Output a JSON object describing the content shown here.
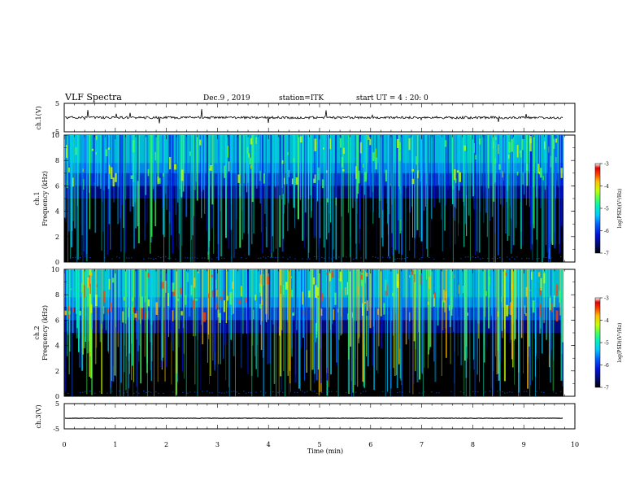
{
  "header": {
    "title": "VLF Spectra",
    "date": "Dec.9 , 2019",
    "station": "station=ITK",
    "start": "start UT = 4 : 20: 0"
  },
  "chart_data": [
    {
      "type": "line",
      "panel": "ch1-waveform",
      "ylabel": "ch.1(V)",
      "ylim": [
        -5,
        5
      ],
      "yticks": [
        "5",
        "-5"
      ],
      "baseline": 0,
      "color": "#000000"
    },
    {
      "type": "heatmap",
      "panel": "ch1-spectrogram",
      "ylabel_lines": [
        "ch.1",
        "Frequency (kHz)"
      ],
      "ylim": [
        0,
        10
      ],
      "yticks": [
        "0",
        "2",
        "4",
        "6",
        "8",
        "10"
      ],
      "colorbar": {
        "label": "log(PSD)(V²/Hz)",
        "ticks": [
          "-3",
          "-4",
          "-5",
          "-6",
          "-7"
        ],
        "range": [
          -7,
          -3
        ]
      }
    },
    {
      "type": "heatmap",
      "panel": "ch2-spectrogram",
      "ylabel_lines": [
        "ch.2",
        "Frequency (kHz)"
      ],
      "ylim": [
        0,
        10
      ],
      "yticks": [
        "0",
        "2",
        "4",
        "6",
        "8",
        "10"
      ],
      "colorbar": {
        "label": "log(PSD)(V²/Hz)",
        "ticks": [
          "-3",
          "-4",
          "-5",
          "-6",
          "-7"
        ],
        "range": [
          -7,
          -3
        ]
      }
    },
    {
      "type": "line",
      "panel": "ch3-waveform",
      "ylabel": "ch.3(V)",
      "ylim": [
        -5,
        5
      ],
      "yticks": [
        "5",
        "-5"
      ],
      "baseline": -0.8,
      "color": "#000000"
    }
  ],
  "xaxis": {
    "label": "Time (min)",
    "range": [
      0,
      10
    ],
    "ticks": [
      "0",
      "1",
      "2",
      "3",
      "4",
      "5",
      "6",
      "7",
      "8",
      "9",
      "10"
    ]
  },
  "colormap": [
    "#000000",
    "#000a60",
    "#0010d8",
    "#0060ff",
    "#00c8ff",
    "#00f0c0",
    "#40ff60",
    "#c8ff00",
    "#ffc000",
    "#ff4000",
    "#e00000",
    "#ffffff"
  ]
}
